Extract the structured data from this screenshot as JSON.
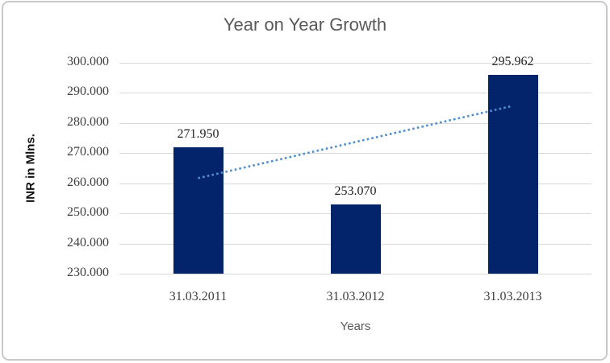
{
  "chart_data": {
    "type": "bar",
    "title": "Year on Year Growth",
    "xlabel": "Years",
    "ylabel": "INR in Mlns.",
    "categories": [
      "31.03.2011",
      "31.03.2012",
      "31.03.2013"
    ],
    "values": [
      271.95,
      253.07,
      295.962
    ],
    "value_labels": [
      "271.950",
      "253.070",
      "295.962"
    ],
    "ylim": [
      230,
      300
    ],
    "ytick_step": 10,
    "ytick_labels_top_to_bottom": [
      "300.000",
      "290.000",
      "280.000",
      "270.000",
      "260.000",
      "250.000",
      "240.000",
      "230.000"
    ],
    "grid": true,
    "legend": "none",
    "trendline": {
      "shape": "linear",
      "style": "dotted",
      "start_category": "31.03.2011",
      "start_value": 261.7,
      "end_category": "31.03.2013",
      "end_value": 285.7
    },
    "colors": {
      "bar": "#03246B",
      "trendline": "#4D8ED3",
      "gridline": "#D9D9D9",
      "frame_border": "#C9C9C9",
      "title_text": "#595959",
      "axis_text": "#3F3F3F",
      "data_label_text": "#1F1F1F"
    }
  }
}
